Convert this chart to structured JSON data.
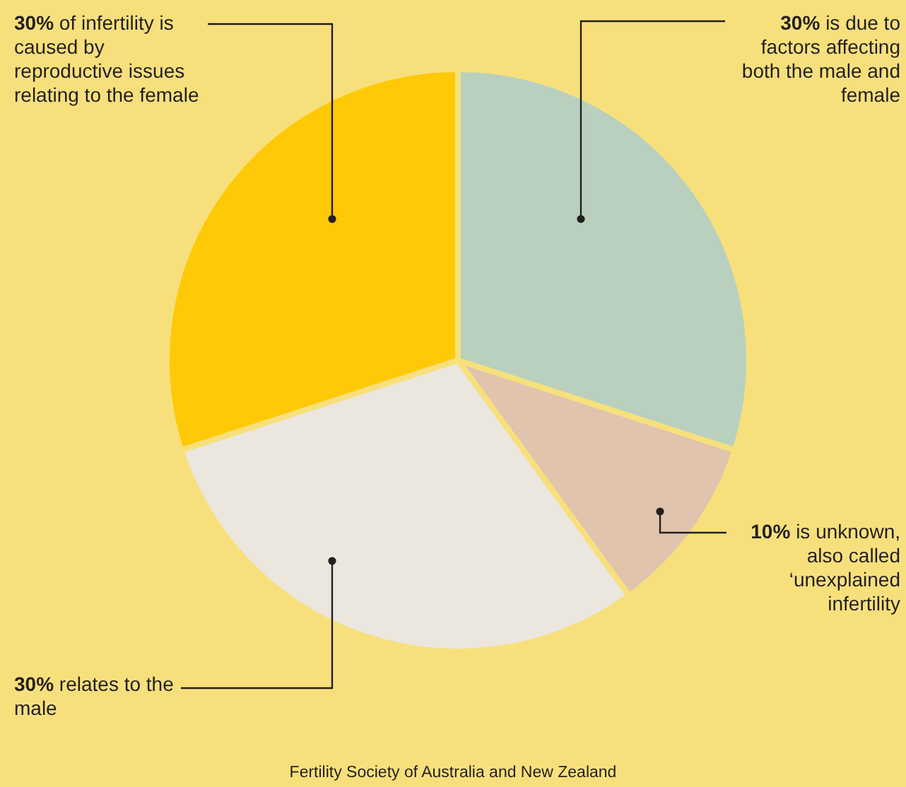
{
  "chart_data": {
    "type": "pie",
    "categories": [
      "is due to factors affecting both the male and female",
      "is unknown, also called ‘unexplained infertility",
      "relates to the male",
      "of infertility is caused by reproductive issues relating to the female"
    ],
    "values": [
      30,
      10,
      30,
      30
    ],
    "value_labels": [
      "30%",
      "10%",
      "30%",
      "30%"
    ],
    "colors": [
      "#b9d0bf",
      "#e0c4ad",
      "#ebe7df",
      "#ffc907"
    ],
    "annotations": [
      "Fertility Society of Australia and New Zealand"
    ]
  }
}
